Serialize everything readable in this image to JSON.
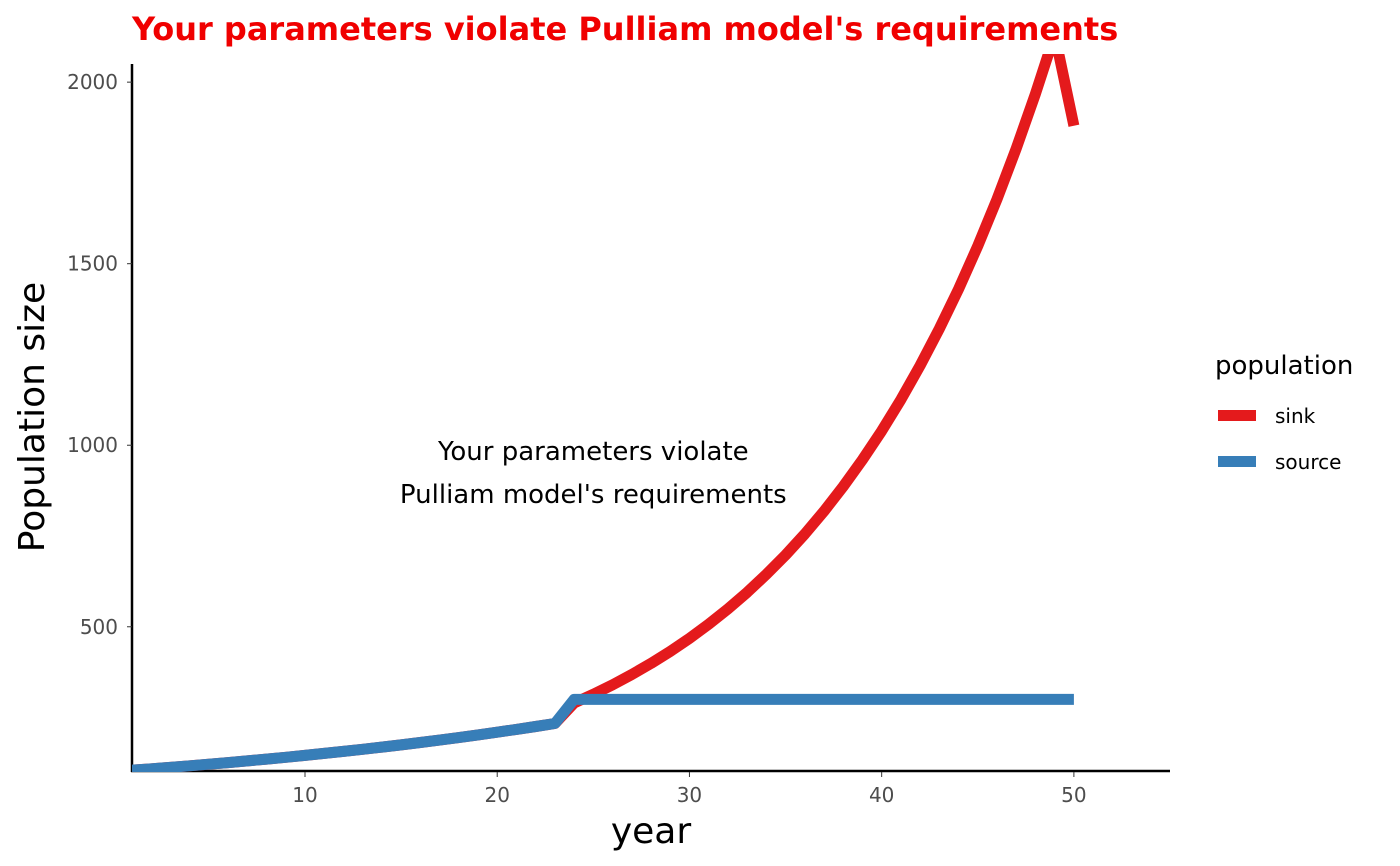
{
  "chart_data": {
    "type": "line",
    "title": "Your parameters violate Pulliam model's requirements",
    "title_color": "#f00000",
    "xlabel": "year",
    "ylabel": "Population size",
    "xlim": [
      1,
      55
    ],
    "ylim": [
      100,
      2050
    ],
    "xticks": [
      10,
      20,
      30,
      40,
      50
    ],
    "yticks": [
      500,
      1000,
      1500,
      2000
    ],
    "grid": false,
    "annotation": [
      "Your parameters violate",
      "Pulliam model's requirements"
    ],
    "annotation_position": [
      25,
      960
    ],
    "legend": {
      "title": "population",
      "placement": "right"
    },
    "series": [
      {
        "name": "sink",
        "color": "#e41a1c",
        "x": [
          1,
          2,
          3,
          4,
          5,
          6,
          7,
          8,
          9,
          10,
          11,
          12,
          13,
          14,
          15,
          16,
          17,
          18,
          19,
          20,
          21,
          22,
          23,
          24,
          25,
          26,
          27,
          28,
          29,
          30,
          31,
          32,
          33,
          34,
          35,
          36,
          37,
          38,
          39,
          40,
          41,
          42,
          43,
          44,
          45,
          46,
          47,
          48,
          49,
          50
        ],
        "y": [
          105,
          108.9,
          112.9,
          117.1,
          121.4,
          125.9,
          130.6,
          135.4,
          140.5,
          145.7,
          151.1,
          156.6,
          162.4,
          168.5,
          174.7,
          181.2,
          187.9,
          194.8,
          202.1,
          209.5,
          217.3,
          225.4,
          233.7,
          290,
          314.1,
          340.2,
          368.5,
          399.1,
          432.2,
          468.1,
          507,
          549.1,
          594.7,
          644.1,
          697.6,
          755.5,
          818.2,
          886.2,
          959.8,
          1039.5,
          1125.8,
          1219.3,
          1320.6,
          1430.2,
          1549,
          1677.6,
          1816.9,
          1967.7,
          2131.1,
          1880
        ]
      },
      {
        "name": "source",
        "color": "#377eb8",
        "x": [
          1,
          2,
          3,
          4,
          5,
          6,
          7,
          8,
          9,
          10,
          11,
          12,
          13,
          14,
          15,
          16,
          17,
          18,
          19,
          20,
          21,
          22,
          23,
          24,
          25,
          30,
          35,
          40,
          45,
          50
        ],
        "y": [
          105,
          108.9,
          112.9,
          117.1,
          121.4,
          125.9,
          130.6,
          135.4,
          140.5,
          145.7,
          151.1,
          156.6,
          162.4,
          168.5,
          174.7,
          181.2,
          187.9,
          194.8,
          202.1,
          209.5,
          217.3,
          225.4,
          233.7,
          300,
          300,
          300,
          300,
          300,
          300,
          300
        ]
      }
    ]
  }
}
